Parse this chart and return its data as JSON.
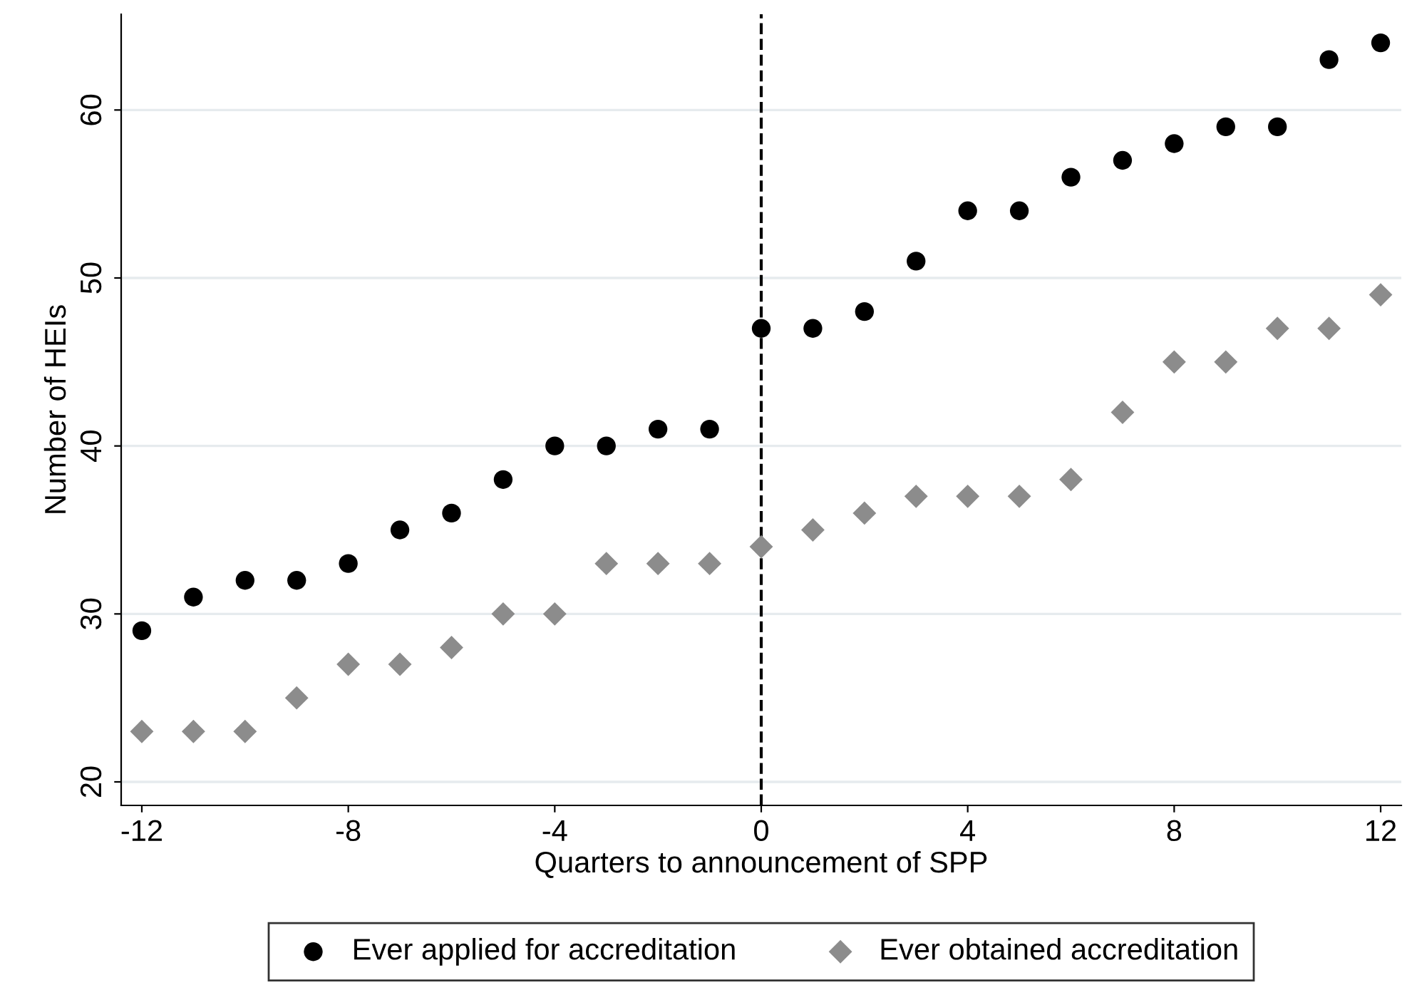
{
  "chart_data": {
    "type": "scatter",
    "xlabel": "Quarters to announcement of SPP",
    "ylabel": "Number of HEIs",
    "x": [
      -12,
      -11,
      -10,
      -9,
      -8,
      -7,
      -6,
      -5,
      -4,
      -3,
      -2,
      -1,
      0,
      1,
      2,
      3,
      4,
      5,
      6,
      7,
      8,
      9,
      10,
      11,
      12
    ],
    "series": [
      {
        "name": "Ever applied for accreditation",
        "color": "#000000",
        "marker": "circle",
        "values": [
          29,
          31,
          32,
          32,
          33,
          35,
          36,
          38,
          40,
          40,
          41,
          41,
          47,
          47,
          48,
          51,
          54,
          54,
          56,
          57,
          58,
          59,
          59,
          63,
          64
        ]
      },
      {
        "name": "Ever obtained accreditation",
        "color": "#8c8c8c",
        "marker": "diamond",
        "values": [
          23,
          23,
          23,
          25,
          27,
          27,
          28,
          30,
          30,
          33,
          33,
          33,
          34,
          35,
          36,
          37,
          37,
          37,
          38,
          42,
          45,
          45,
          47,
          47,
          49
        ]
      }
    ],
    "xlim": [
      -12.4,
      12.4
    ],
    "xticks": [
      -12,
      -8,
      -4,
      0,
      4,
      8,
      12
    ],
    "ylim": [
      18.6,
      65.7
    ],
    "yticks": [
      20,
      30,
      40,
      50,
      60
    ],
    "ref_lines": [
      {
        "axis": "x",
        "value": 0,
        "label": null,
        "color": "#000000",
        "line_style": "dashed"
      }
    ],
    "grid": "y",
    "legend": "bottom"
  }
}
